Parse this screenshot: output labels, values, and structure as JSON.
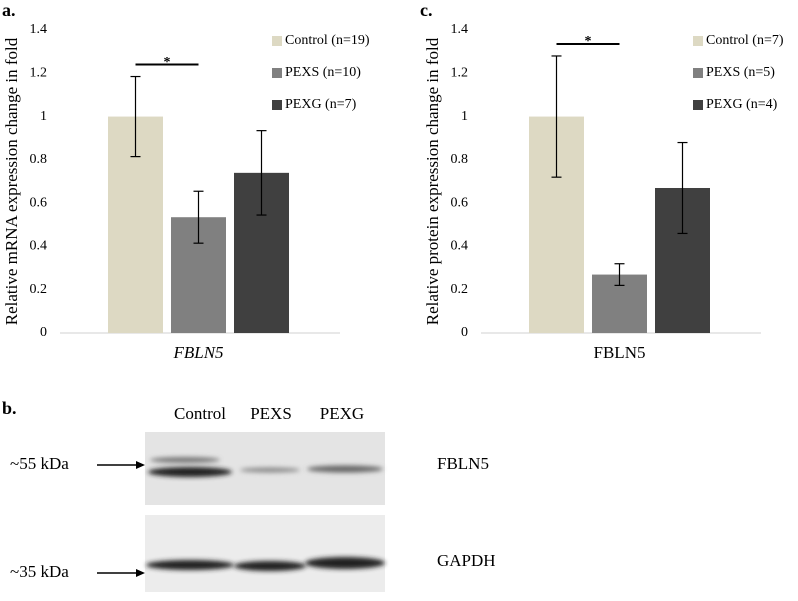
{
  "chart_data": [
    {
      "type": "bar",
      "panel": "a.",
      "ylabel": "Relative mRNA expression change in fold",
      "categories": [
        "FBLN5"
      ],
      "category_style": "italic",
      "series": [
        {
          "name": "Control (n=19)",
          "color": "#ddd9c3",
          "values": [
            1.0
          ],
          "errors": [
            0.185
          ]
        },
        {
          "name": "PEXS (n=10)",
          "color": "#808080",
          "values": [
            0.535
          ],
          "errors": [
            0.12
          ]
        },
        {
          "name": "PEXG (n=7)",
          "color": "#404040",
          "values": [
            0.74
          ],
          "errors": [
            0.195
          ]
        }
      ],
      "ylim": [
        0,
        1.4
      ],
      "yticks": [
        0,
        0.2,
        0.4,
        0.6,
        0.8,
        1,
        1.2,
        1.4
      ],
      "grid": false,
      "legend": "upper right",
      "annotations": [
        {
          "text": "*"
        }
      ]
    },
    {
      "type": "bar",
      "panel": "c.",
      "ylabel": "Relative protein expression change in fold",
      "categories": [
        "FBLN5"
      ],
      "category_style": "normal",
      "series": [
        {
          "name": "Control (n=7)",
          "color": "#ddd9c3",
          "values": [
            1.0
          ],
          "errors": [
            0.28
          ]
        },
        {
          "name": "PEXS (n=5)",
          "color": "#808080",
          "values": [
            0.27
          ],
          "errors": [
            0.05
          ]
        },
        {
          "name": "PEXG (n=4)",
          "color": "#404040",
          "values": [
            0.67
          ],
          "errors": [
            0.21
          ]
        }
      ],
      "ylim": [
        0,
        1.4
      ],
      "yticks": [
        0,
        0.2,
        0.4,
        0.6,
        0.8,
        1,
        1.2,
        1.4
      ],
      "grid": false,
      "legend": "upper right",
      "annotations": [
        {
          "text": "*"
        }
      ]
    }
  ],
  "blot": {
    "panel": "b.",
    "lanes": [
      "Control",
      "PEXS",
      "PEXG"
    ],
    "markers": [
      "~55 kDa",
      "~35 kDa"
    ],
    "proteins": [
      "FBLN5",
      "GAPDH"
    ]
  }
}
